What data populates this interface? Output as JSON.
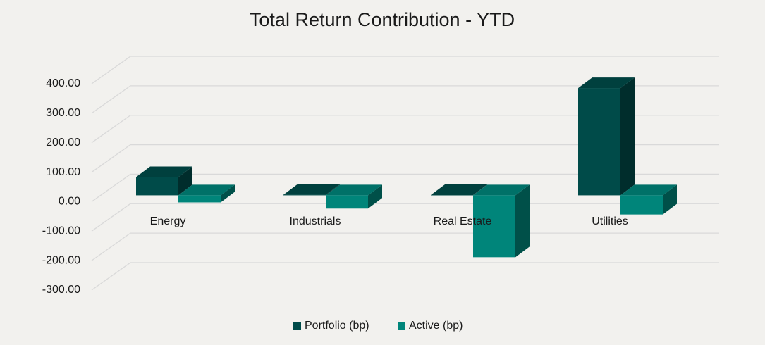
{
  "chart_data": {
    "type": "bar3d",
    "title": "Total Return Contribution - YTD",
    "categories": [
      "Energy",
      "Industrials",
      "Real Estate",
      "Utilities"
    ],
    "series": [
      {
        "name": "Portfolio (bp)",
        "color": "#004b49",
        "values": [
          62,
          2,
          1,
          364
        ]
      },
      {
        "name": "Active (bp)",
        "color": "#00857a",
        "values": [
          -24,
          -45,
          -210,
          -65
        ]
      }
    ],
    "ylim": [
      -300,
      400
    ],
    "yticks": [
      {
        "value": -300,
        "label": "-300.00"
      },
      {
        "value": -200,
        "label": "-200.00"
      },
      {
        "value": -100,
        "label": "-100.00"
      },
      {
        "value": 0,
        "label": "0.00"
      },
      {
        "value": 100,
        "label": "100.00"
      },
      {
        "value": 200,
        "label": "200.00"
      },
      {
        "value": 300,
        "label": "300.00"
      },
      {
        "value": 400,
        "label": "400.00"
      }
    ],
    "grid": true,
    "legend": "bottom"
  }
}
